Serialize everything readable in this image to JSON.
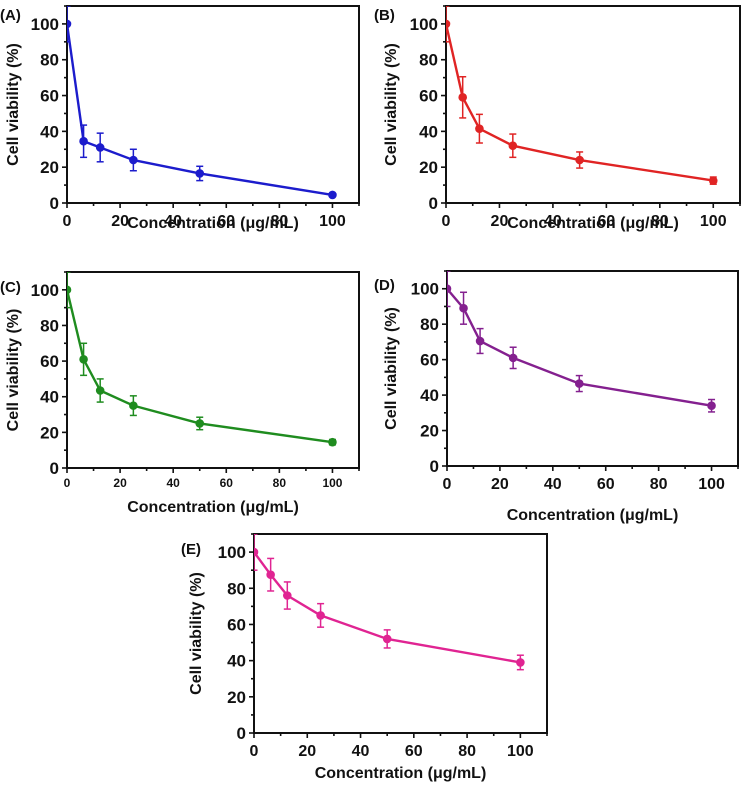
{
  "figure": {
    "panel_labels": [
      "(A)",
      "(B)",
      "(C)",
      "(D)",
      "(E)"
    ]
  },
  "chart_data": [
    {
      "panel": "(A)",
      "type": "line",
      "color": "#1c1ccc",
      "xlabel": "Concentration (μg/mL)",
      "ylabel": "Cell viability (%)",
      "x": [
        0,
        6.25,
        12.5,
        25,
        50,
        100
      ],
      "values": [
        100,
        34.5,
        31,
        24,
        16.5,
        4.5
      ],
      "errors": [
        10,
        9,
        8,
        6,
        4,
        1
      ],
      "xlim": [
        0,
        110
      ],
      "ylim": [
        0,
        110
      ],
      "xticks": [
        0,
        20,
        40,
        60,
        80,
        100
      ],
      "yticks": [
        0,
        20,
        40,
        60,
        80,
        100
      ],
      "grid": false
    },
    {
      "panel": "(B)",
      "type": "line",
      "color": "#e02424",
      "xlabel": "Concentration (μg/mL)",
      "ylabel": "Cell viability (%)",
      "x": [
        0,
        6.25,
        12.5,
        25,
        50,
        100
      ],
      "values": [
        100,
        59,
        41.5,
        32,
        24,
        12.5
      ],
      "errors": [
        10,
        11.5,
        8,
        6.5,
        4.5,
        2
      ],
      "xlim": [
        0,
        110
      ],
      "ylim": [
        0,
        110
      ],
      "xticks": [
        0,
        20,
        40,
        60,
        80,
        100
      ],
      "yticks": [
        0,
        20,
        40,
        60,
        80,
        100
      ],
      "grid": false
    },
    {
      "panel": "(C)",
      "type": "line",
      "color": "#1f8c1f",
      "xlabel": "Concentration (μg/mL)",
      "ylabel": "Cell viability (%)",
      "x": [
        0,
        6.25,
        12.5,
        25,
        50,
        100
      ],
      "values": [
        100,
        61,
        43.5,
        35,
        25,
        14.5
      ],
      "errors": [
        10,
        9,
        6.5,
        5.5,
        3.5,
        1.5
      ],
      "xlim": [
        0,
        110
      ],
      "ylim": [
        0,
        110
      ],
      "xticks": [
        0,
        20,
        40,
        60,
        80,
        100
      ],
      "yticks": [
        0,
        20,
        40,
        60,
        80,
        100
      ],
      "grid": false
    },
    {
      "panel": "(D)",
      "type": "line",
      "color": "#84208f",
      "xlabel": "Concentration (μg/mL)",
      "ylabel": "Cell viability (%)",
      "x": [
        0,
        6.25,
        12.5,
        25,
        50,
        100
      ],
      "values": [
        100,
        89,
        70.5,
        61,
        46.5,
        34
      ],
      "errors": [
        10,
        9,
        7,
        6,
        4.5,
        3.5
      ],
      "xlim": [
        0,
        110
      ],
      "ylim": [
        0,
        110
      ],
      "xticks": [
        0,
        20,
        40,
        60,
        80,
        100
      ],
      "yticks": [
        0,
        20,
        40,
        60,
        80,
        100
      ],
      "grid": false
    },
    {
      "panel": "(E)",
      "type": "line",
      "color": "#e02492",
      "xlabel": "Concentration (μg/mL)",
      "ylabel": "Cell viability (%)",
      "x": [
        0,
        6.25,
        12.5,
        25,
        50,
        100
      ],
      "values": [
        100,
        87.5,
        76,
        65,
        52,
        39
      ],
      "errors": [
        10,
        9,
        7.5,
        6.5,
        5,
        4
      ],
      "xlim": [
        0,
        110
      ],
      "ylim": [
        0,
        110
      ],
      "xticks": [
        0,
        20,
        40,
        60,
        80,
        100
      ],
      "yticks": [
        0,
        20,
        40,
        60,
        80,
        100
      ],
      "grid": false
    }
  ]
}
